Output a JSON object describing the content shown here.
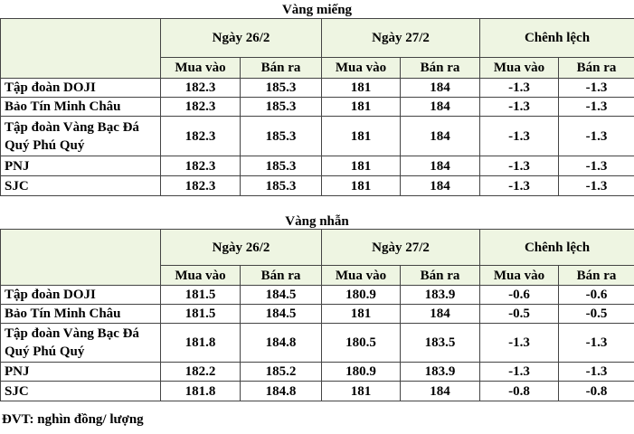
{
  "tables": [
    {
      "title": "Vàng miếng",
      "groups": [
        "Ngày 26/2",
        "Ngày 27/2",
        "Chênh lệch"
      ],
      "subheaders": [
        "Mua vào",
        "Bán ra",
        "Mua vào",
        "Bán ra",
        "Mua vào",
        "Bán ra"
      ],
      "rows": [
        [
          "Tập đoàn DOJI",
          182.3,
          185.3,
          181,
          184,
          -1.3,
          -1.3
        ],
        [
          "Bảo Tín Minh Châu",
          182.3,
          185.3,
          181,
          184,
          -1.3,
          -1.3
        ],
        [
          "Tập đoàn Vàng Bạc Đá Quý Phú Quý",
          182.3,
          185.3,
          181,
          184,
          -1.3,
          -1.3
        ],
        [
          "PNJ",
          182.3,
          185.3,
          181,
          184,
          -1.3,
          -1.3
        ],
        [
          "SJC",
          182.3,
          185.3,
          181,
          184,
          -1.3,
          -1.3
        ]
      ]
    },
    {
      "title": "Vàng nhẫn",
      "groups": [
        "Ngày 26/2",
        "Ngày 27/2",
        "Chênh lệch"
      ],
      "subheaders": [
        "Mua vào",
        "Bán ra",
        "Mua vào",
        "Bán ra",
        "Mua vào",
        "Bán ra"
      ],
      "rows": [
        [
          "Tập đoàn DOJI",
          181.5,
          184.5,
          180.9,
          183.9,
          -0.6,
          -0.6
        ],
        [
          "Bảo Tín Minh Châu",
          181.5,
          184.5,
          181,
          184,
          -0.5,
          -0.5
        ],
        [
          "Tập đoàn Vàng Bạc Đá Quý Phú Quý",
          181.8,
          184.8,
          180.5,
          183.5,
          -1.3,
          -1.3
        ],
        [
          "PNJ",
          182.2,
          185.2,
          180.9,
          183.9,
          -1.3,
          -1.3
        ],
        [
          "SJC",
          181.8,
          184.8,
          181,
          184,
          -0.8,
          -0.8
        ]
      ]
    }
  ],
  "footer": "ĐVT: nghìn đồng/ lượng"
}
